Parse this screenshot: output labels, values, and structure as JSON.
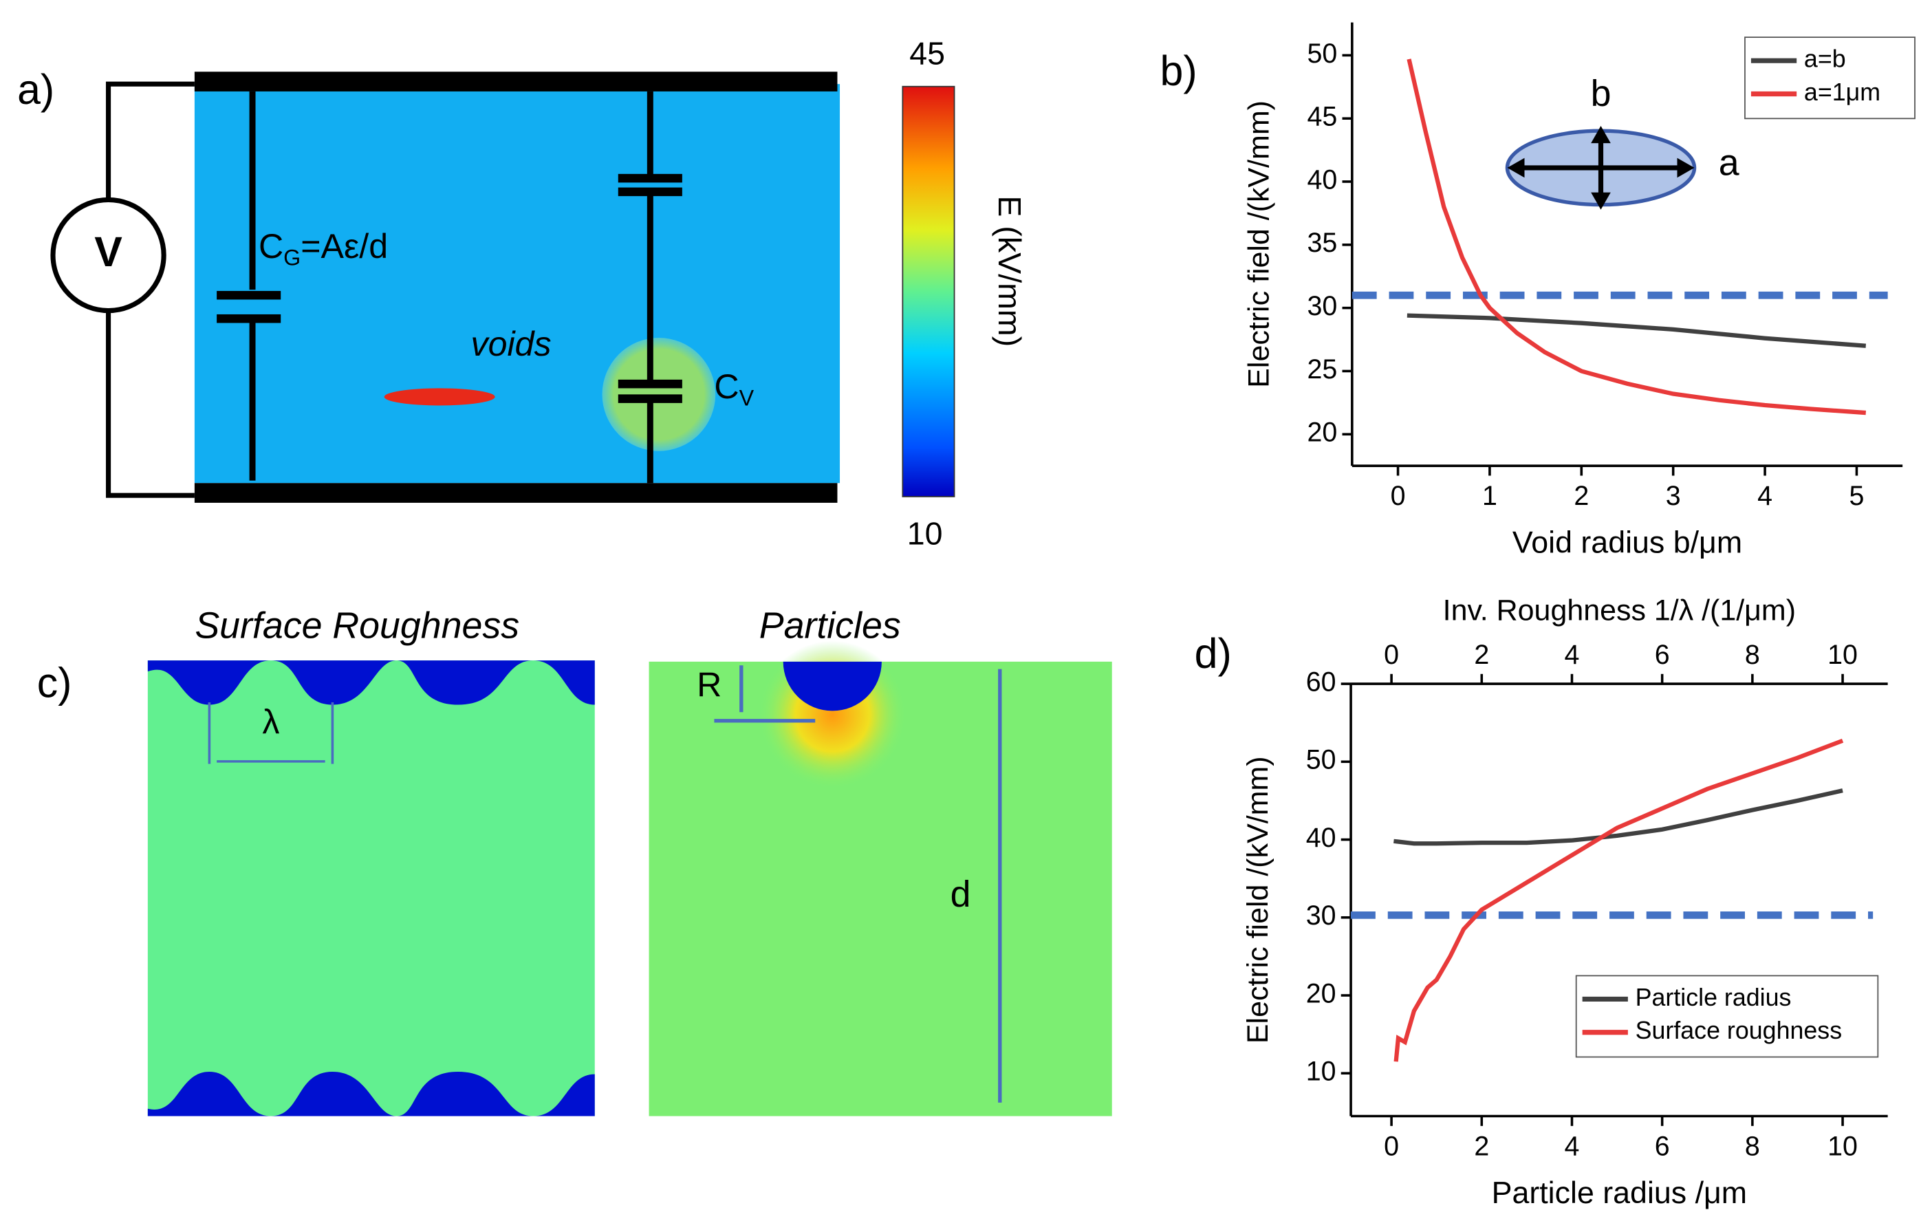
{
  "panel_a": {
    "label": "a)",
    "source": "V",
    "cg": {
      "main": "C",
      "sub": "G",
      "rest": "=Aε/d"
    },
    "voids": "voids",
    "cv": {
      "main": "C",
      "sub": "V"
    },
    "colorbar": {
      "max": 45,
      "min": 10,
      "label": "E (kV/mm)"
    }
  },
  "panel_c": {
    "label": "c)",
    "left_title": "Surface Roughness",
    "right_title": "Particles",
    "lambda": "λ",
    "r": "R",
    "d": "d"
  },
  "chart_data": [
    {
      "type": "line",
      "label": "b)",
      "xlabel": "Void radius b/μm",
      "ylabel": "Electric field /(kV/mm)",
      "xlim": [
        -0.5,
        5.5
      ],
      "ylim": [
        17.5,
        52.6
      ],
      "xticks": [
        0,
        1,
        2,
        3,
        4,
        5
      ],
      "yticks": [
        20,
        25,
        30,
        35,
        40,
        45,
        50
      ],
      "legend": "top-right",
      "reference_line": 31,
      "reference_color": "#4472c4",
      "inset": {
        "a": "a",
        "b": "b"
      },
      "series": [
        {
          "name": "a=b",
          "color": "#404040",
          "x": [
            0.1,
            1,
            2,
            3,
            4,
            5.1
          ],
          "values": [
            29.4,
            29.2,
            28.8,
            28.3,
            27.6,
            27
          ]
        },
        {
          "name": "a=1μm",
          "color": "#e83a3a",
          "x": [
            0.12,
            0.3,
            0.5,
            0.7,
            0.9,
            1.0,
            1.3,
            1.6,
            2,
            2.5,
            3,
            3.5,
            4,
            4.5,
            5.1
          ],
          "values": [
            49.7,
            44,
            38,
            34,
            31,
            30,
            28,
            26.5,
            25,
            24,
            23.2,
            22.7,
            22.3,
            22,
            21.7
          ]
        }
      ]
    },
    {
      "type": "line",
      "label": "d)",
      "xlabel": "Particle radius /μm",
      "x2label": "Inv. Roughness 1/λ /(1/μm)",
      "x2color": "#e83a3a",
      "ylabel": "Electric field /(kV/mm)",
      "xlim": [
        -0.9,
        11
      ],
      "x2lim": [
        -0.9,
        11
      ],
      "ylim": [
        4.5,
        60
      ],
      "xticks": [
        0,
        2,
        4,
        6,
        8,
        10
      ],
      "x2ticks": [
        0,
        2,
        4,
        6,
        8,
        10
      ],
      "yticks": [
        10,
        20,
        30,
        40,
        50,
        60
      ],
      "legend": "bottom-right",
      "reference_line": 30.3,
      "reference_color": "#4472c4",
      "series": [
        {
          "name": "Particle radius",
          "color": "#404040",
          "x": [
            0.05,
            0.5,
            1,
            2,
            3,
            4,
            5,
            6,
            7,
            8,
            9,
            10
          ],
          "values": [
            39.8,
            39.5,
            39.5,
            39.6,
            39.6,
            39.9,
            40.5,
            41.3,
            42.5,
            43.8,
            45,
            46.3
          ]
        },
        {
          "name": " Surface roughness",
          "color": "#e83a3a",
          "axis": "x2",
          "x": [
            0.1,
            0.15,
            0.3,
            0.5,
            0.8,
            1,
            1.3,
            1.6,
            2,
            3,
            4,
            5,
            6,
            7,
            8,
            9,
            10
          ],
          "values": [
            11.5,
            14.5,
            14,
            18,
            21,
            22,
            25,
            28.5,
            31,
            34.5,
            38,
            41.5,
            44,
            46.5,
            48.5,
            50.5,
            52.7
          ]
        }
      ]
    }
  ]
}
